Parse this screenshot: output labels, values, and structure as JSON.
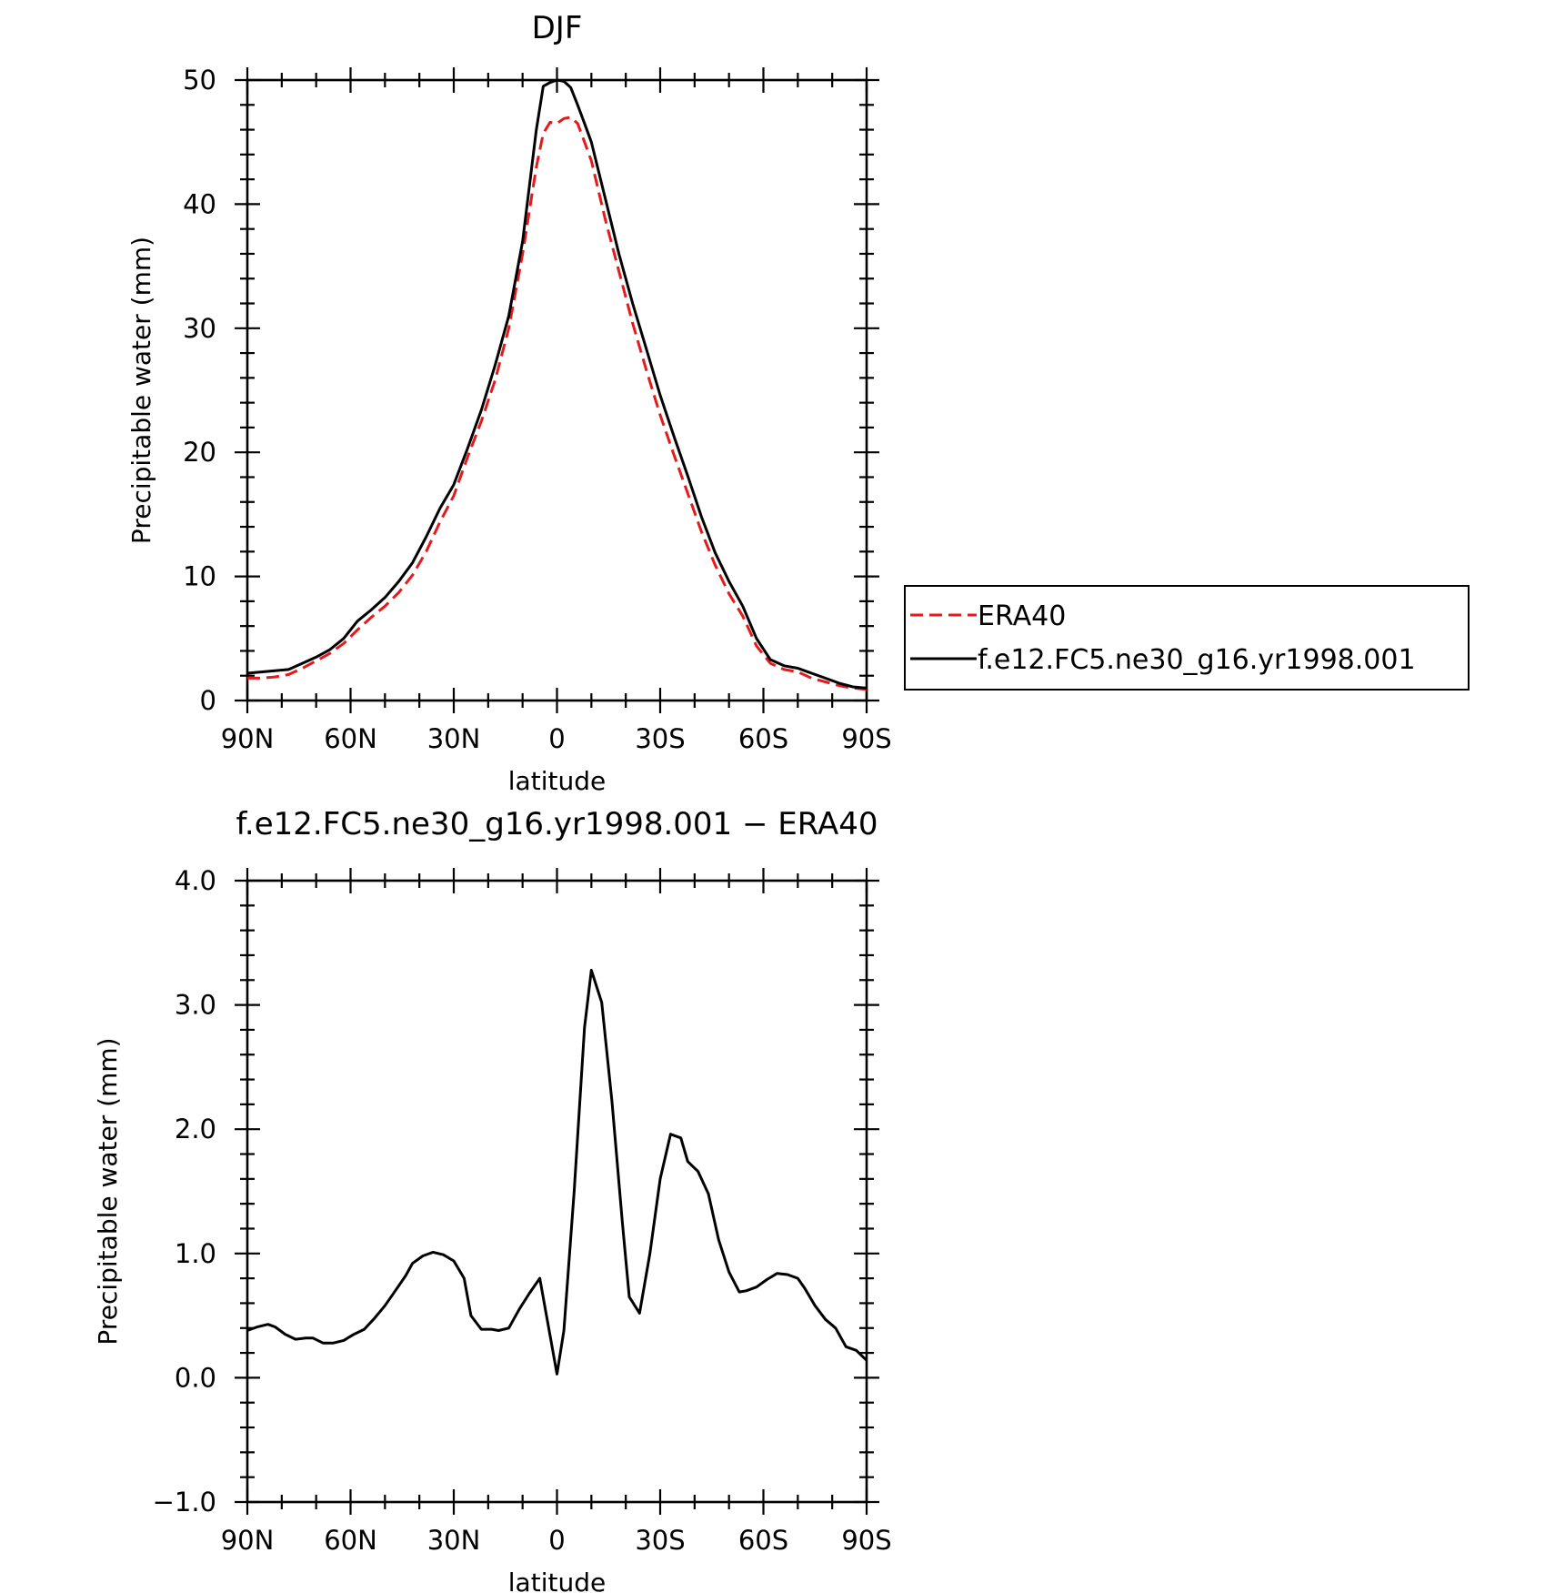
{
  "chart_data": [
    {
      "type": "line",
      "title": "DJF",
      "xlabel": "latitude",
      "ylabel": "Precipitable water (mm)",
      "xlim": [
        90,
        -90
      ],
      "ylim": [
        0,
        50
      ],
      "x_ticks": [
        90,
        60,
        30,
        0,
        -30,
        -60,
        -90
      ],
      "x_tick_labels": [
        "90N",
        "60N",
        "30N",
        "0",
        "30S",
        "60S",
        "90S"
      ],
      "y_ticks": [
        0,
        10,
        20,
        30,
        40,
        50
      ],
      "y_tick_labels": [
        "0",
        "10",
        "20",
        "30",
        "40",
        "50"
      ],
      "grid": false,
      "legend_position": "right",
      "series": [
        {
          "name": "ERA40",
          "color": "#e41a1c",
          "dash": "dashed",
          "x": [
            90,
            86,
            82,
            78,
            74,
            70,
            66,
            62,
            58,
            54,
            50,
            46,
            42,
            38,
            34,
            30,
            26,
            22,
            18,
            14,
            10,
            6,
            4,
            2,
            0,
            -2,
            -4,
            -6,
            -8,
            -10,
            -14,
            -18,
            -22,
            -26,
            -30,
            -34,
            -38,
            -42,
            -46,
            -50,
            -54,
            -58,
            -62,
            -66,
            -70,
            -74,
            -78,
            -82,
            -86,
            -90
          ],
          "y": [
            1.8,
            1.8,
            1.9,
            2.1,
            2.6,
            3.2,
            3.8,
            4.6,
            5.7,
            6.7,
            7.6,
            8.7,
            10.1,
            12.0,
            14.4,
            16.5,
            19.6,
            22.5,
            25.8,
            30.0,
            36.0,
            43.0,
            45.7,
            46.6,
            46.5,
            46.9,
            47.0,
            46.5,
            45.0,
            43.5,
            38.8,
            34.6,
            30.4,
            26.6,
            23.0,
            19.8,
            16.7,
            13.6,
            10.9,
            8.6,
            6.8,
            4.4,
            3.0,
            2.5,
            2.3,
            1.8,
            1.5,
            1.2,
            1.0,
            0.9
          ]
        },
        {
          "name": "f.e12.FC5.ne30_g16.yr1998.001",
          "color": "#000000",
          "dash": "solid",
          "x": [
            90,
            86,
            82,
            78,
            74,
            70,
            66,
            62,
            58,
            54,
            50,
            46,
            42,
            38,
            34,
            30,
            26,
            22,
            18,
            14,
            10,
            6,
            4,
            2,
            0,
            -2,
            -4,
            -6,
            -8,
            -10,
            -14,
            -18,
            -22,
            -26,
            -30,
            -34,
            -38,
            -42,
            -46,
            -50,
            -54,
            -58,
            -62,
            -66,
            -70,
            -74,
            -78,
            -82,
            -86,
            -90
          ],
          "y": [
            2.2,
            2.3,
            2.4,
            2.5,
            3.0,
            3.5,
            4.1,
            5.0,
            6.4,
            7.3,
            8.3,
            9.6,
            11.1,
            13.2,
            15.5,
            17.4,
            20.3,
            23.4,
            27.0,
            31.0,
            37.0,
            46.0,
            49.5,
            49.8,
            50.0,
            49.9,
            49.4,
            48.0,
            46.5,
            45.0,
            40.5,
            36.0,
            32.0,
            28.3,
            24.6,
            21.3,
            18.1,
            14.8,
            11.9,
            9.6,
            7.6,
            5.0,
            3.3,
            2.8,
            2.6,
            2.2,
            1.8,
            1.4,
            1.1,
            1.0
          ]
        }
      ]
    },
    {
      "type": "line",
      "title": "f.e12.FC5.ne30_g16.yr1998.001 − ERA40",
      "xlabel": "latitude",
      "ylabel": "Precipitable water (mm)",
      "xlim": [
        90,
        -90
      ],
      "ylim": [
        -1.0,
        4.0
      ],
      "x_ticks": [
        90,
        60,
        30,
        0,
        -30,
        -60,
        -90
      ],
      "x_tick_labels": [
        "90N",
        "60N",
        "30N",
        "0",
        "30S",
        "60S",
        "90S"
      ],
      "y_ticks": [
        -1.0,
        0.0,
        1.0,
        2.0,
        3.0,
        4.0
      ],
      "y_tick_labels": [
        "−1.0",
        "0.0",
        "1.0",
        "2.0",
        "3.0",
        "4.0"
      ],
      "grid": false,
      "series": [
        {
          "color": "#000000",
          "dash": "solid",
          "x": [
            90,
            87,
            84,
            82,
            79,
            76,
            73,
            71,
            68,
            65,
            62,
            59,
            56,
            53,
            50,
            47,
            44,
            42,
            39,
            36,
            33,
            30,
            27,
            25,
            22,
            19,
            17,
            14,
            11,
            8,
            5,
            2,
            0,
            -2,
            -5,
            -8,
            -10,
            -13,
            -16,
            -19,
            -21,
            -24,
            -27,
            -30,
            -33,
            -36,
            -38,
            -41,
            -44,
            -47,
            -50,
            -53,
            -55,
            -58,
            -61,
            -64,
            -67,
            -70,
            -72,
            -75,
            -78,
            -81,
            -84,
            -87,
            -90
          ],
          "y": [
            0.38,
            0.41,
            0.43,
            0.41,
            0.35,
            0.31,
            0.32,
            0.32,
            0.28,
            0.28,
            0.3,
            0.35,
            0.39,
            0.48,
            0.58,
            0.7,
            0.82,
            0.92,
            0.98,
            1.01,
            0.99,
            0.94,
            0.8,
            0.5,
            0.39,
            0.39,
            0.38,
            0.4,
            0.55,
            0.68,
            0.8,
            0.34,
            0.03,
            0.38,
            1.5,
            2.82,
            3.28,
            3.02,
            2.22,
            1.25,
            0.65,
            0.52,
            1.0,
            1.6,
            1.96,
            1.93,
            1.74,
            1.66,
            1.48,
            1.11,
            0.85,
            0.69,
            0.7,
            0.73,
            0.79,
            0.84,
            0.83,
            0.8,
            0.72,
            0.58,
            0.47,
            0.4,
            0.25,
            0.22,
            0.14
          ]
        }
      ]
    }
  ]
}
